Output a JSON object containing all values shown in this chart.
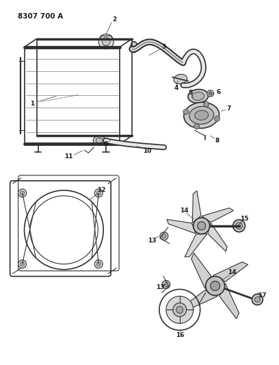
{
  "title": "8307 700 A",
  "bg_color": "#ffffff",
  "lc": "#303030",
  "fig_width": 4.08,
  "fig_height": 5.33,
  "dpi": 100
}
